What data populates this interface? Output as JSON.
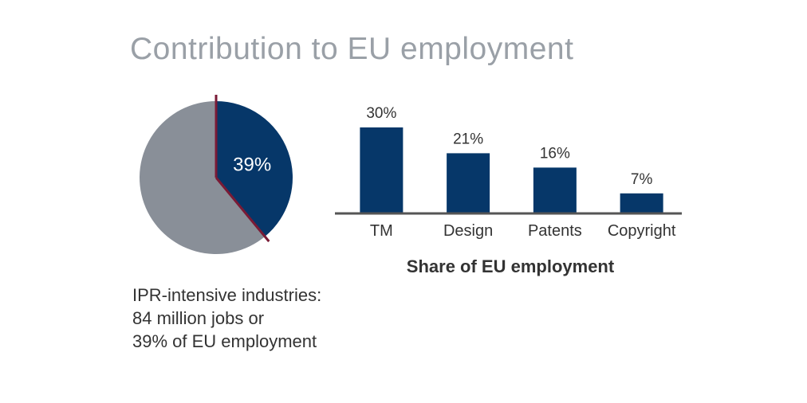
{
  "title": "Contribution to EU employment",
  "chart_data": [
    {
      "type": "pie",
      "slices": [
        {
          "label": "",
          "value": 39,
          "color": "#063769"
        },
        {
          "label": "",
          "value": 61,
          "color": "#898f98"
        }
      ],
      "slice_label": "39%",
      "divider_color": "#7a1a35",
      "caption": [
        "IPR-intensive industries:",
        "84 million jobs or",
        "39% of EU employment"
      ]
    },
    {
      "type": "bar",
      "categories": [
        "TM",
        "Design",
        "Patents",
        "Copyright"
      ],
      "values": [
        30,
        21,
        16,
        7
      ],
      "data_labels": [
        "30%",
        "21%",
        "16%",
        "7%"
      ],
      "xlabel": "Share of EU employment",
      "ylabel": "",
      "ylim": [
        0,
        30
      ],
      "bar_color": "#063769",
      "axis_color": "#555555"
    }
  ]
}
